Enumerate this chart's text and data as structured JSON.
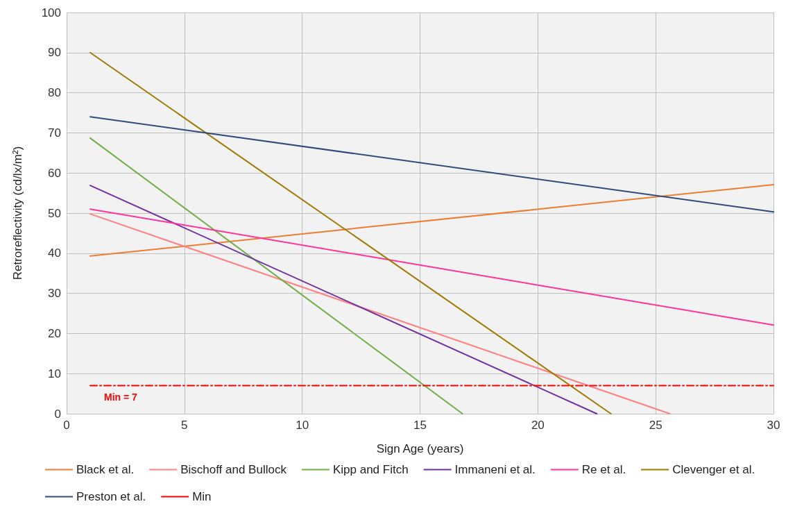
{
  "chart_data": {
    "type": "line",
    "xlabel": "Sign Age (years)",
    "ylabel": "Retroreflectivity (cd/lx/m²)",
    "xlim": [
      0,
      30
    ],
    "xticks": [
      0,
      5,
      10,
      15,
      20,
      25,
      30
    ],
    "ylim": [
      0,
      100
    ],
    "yticks": [
      0,
      10,
      20,
      30,
      40,
      50,
      60,
      70,
      80,
      90,
      100
    ],
    "grid": true,
    "legend": "bottom",
    "marker": "none",
    "line_style": "solid",
    "series": [
      {
        "name": "Black et al.",
        "color": "#ed7d31",
        "x": [
          1,
          30
        ],
        "values": [
          39.3,
          57.1
        ]
      },
      {
        "name": "Bischoff and Bullock",
        "color": "#ff8080",
        "x": [
          1,
          25.6
        ],
        "values": [
          49.8,
          0
        ]
      },
      {
        "name": "Kipp and Fitch",
        "color": "#70ad47",
        "x": [
          1,
          16.8
        ],
        "values": [
          68.7,
          0
        ]
      },
      {
        "name": "Immaneni et al.",
        "color": "#7030a0",
        "x": [
          1,
          22.5
        ],
        "values": [
          56.9,
          0
        ]
      },
      {
        "name": "Re et al.",
        "color": "#ff3399",
        "x": [
          1,
          30
        ],
        "values": [
          51,
          22.1
        ]
      },
      {
        "name": "Clevenger et al.",
        "color": "#9c7a00",
        "x": [
          1,
          23.1
        ],
        "values": [
          90,
          0
        ]
      },
      {
        "name": "Preston et al.",
        "color": "#2f4b7c",
        "x": [
          1,
          30
        ],
        "values": [
          74,
          50.3
        ]
      },
      {
        "name": "Min",
        "color": "#ff0000",
        "x": [
          1,
          30
        ],
        "values": [
          7,
          7
        ],
        "line_style": "dashed"
      }
    ],
    "annotations": [
      {
        "text": "Min = 7",
        "x": 1,
        "y": 7
      }
    ]
  }
}
